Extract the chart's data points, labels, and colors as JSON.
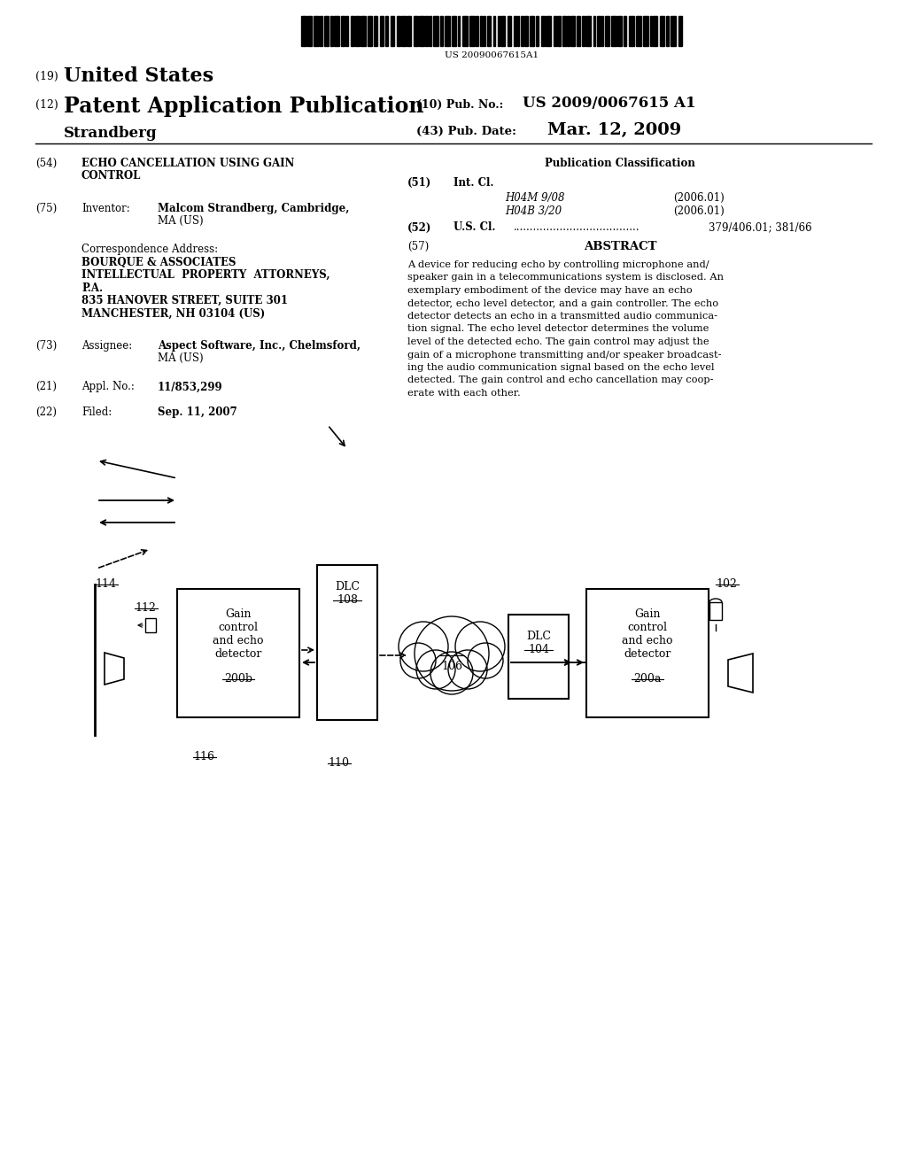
{
  "bg_color": "#ffffff",
  "barcode_text": "US 20090067615A1",
  "header": {
    "country_num": "(19)",
    "country": "United States",
    "pub_num": "(12)",
    "pub_type": "Patent Application Publication",
    "inventor_name": "Strandberg",
    "pub_no_label": "(10) Pub. No.:",
    "pub_no_value": "US 2009/0067615 A1",
    "pub_date_label": "(43) Pub. Date:",
    "pub_date_value": "Mar. 12, 2009"
  },
  "left_col": {
    "title_num": "(54)",
    "title_line1": "ECHO CANCELLATION USING GAIN",
    "title_line2": "CONTROL",
    "inventor_num": "(75)",
    "inventor_label": "Inventor:",
    "inventor_value1": "Malcom Strandberg, Cambridge,",
    "inventor_value2": "MA (US)",
    "corr_label": "Correspondence Address:",
    "corr_line1": "BOURQUE & ASSOCIATES",
    "corr_line2": "INTELLECTUAL  PROPERTY  ATTORNEYS,",
    "corr_line3": "P.A.",
    "corr_line4": "835 HANOVER STREET, SUITE 301",
    "corr_line5": "MANCHESTER, NH 03104 (US)",
    "assignee_num": "(73)",
    "assignee_label": "Assignee:",
    "assignee_value1": "Aspect Software, Inc., Chelmsford,",
    "assignee_value2": "MA (US)",
    "appl_num": "(21)",
    "appl_label": "Appl. No.:",
    "appl_value": "11/853,299",
    "filed_num": "(22)",
    "filed_label": "Filed:",
    "filed_value": "Sep. 11, 2007"
  },
  "right_col": {
    "pub_class_label": "Publication Classification",
    "int_cl_num": "(51)",
    "int_cl_label": "Int. Cl.",
    "int_cl_1_code": "H04M 9/08",
    "int_cl_1_year": "(2006.01)",
    "int_cl_2_code": "H04B 3/20",
    "int_cl_2_year": "(2006.01)",
    "us_cl_num": "(52)",
    "us_cl_label": "U.S. Cl.",
    "us_cl_dots": "......................................",
    "us_cl_value": "379/406.01; 381/66",
    "abstract_num": "(57)",
    "abstract_label": "ABSTRACT",
    "abstract_lines": [
      "A device for reducing echo by controlling microphone and/",
      "speaker gain in a telecommunications system is disclosed. An",
      "exemplary embodiment of the device may have an echo",
      "detector, echo level detector, and a gain controller. The echo",
      "detector detects an echo in a transmitted audio communica-",
      "tion signal. The echo level detector determines the volume",
      "level of the detected echo. The gain control may adjust the",
      "gain of a microphone transmitting and/or speaker broadcast-",
      "ing the audio communication signal based on the echo level",
      "detected. The gain control and echo cancellation may coop-",
      "erate with each other."
    ]
  }
}
